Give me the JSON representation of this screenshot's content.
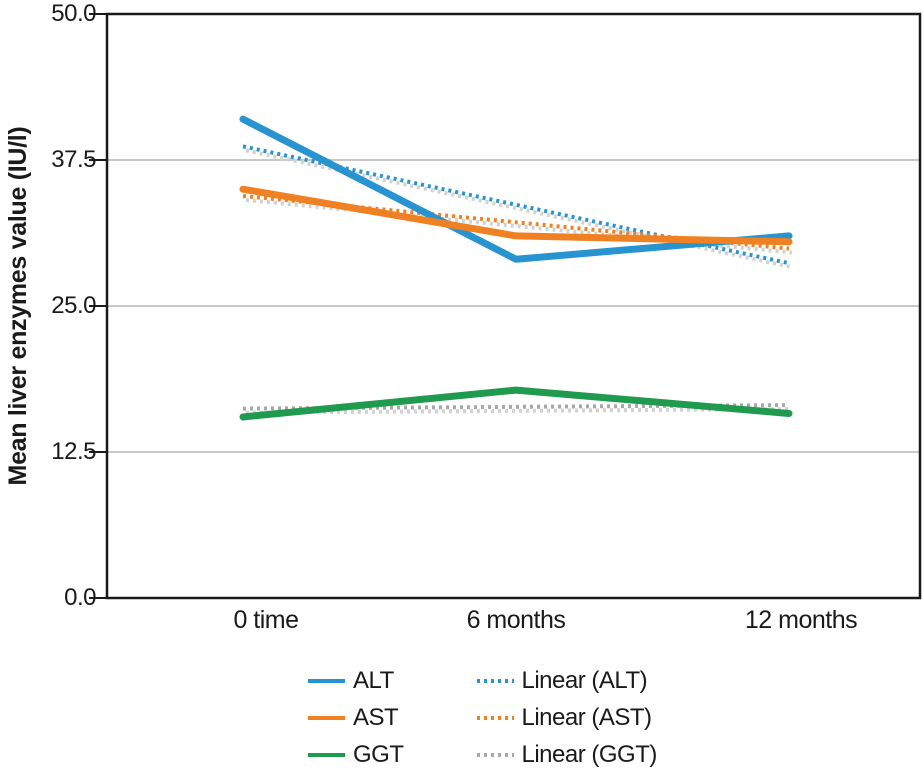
{
  "chart_data": {
    "type": "line",
    "title": "",
    "xlabel": "",
    "ylabel": "Mean liver enzymes value (IU/l)",
    "categories": [
      "0 time",
      "6 months",
      "12 months"
    ],
    "yticks": [
      "50.0",
      "37.5",
      "25.0",
      "12.5",
      "0.0"
    ],
    "ylim": [
      0,
      50
    ],
    "grid": "horizontal gridlines at 12.5, 25.0, 37.5; full black plot border",
    "legend_position": "bottom, two columns",
    "series": [
      {
        "name": "ALT",
        "style": "solid",
        "color": "#2793D1",
        "values": [
          41,
          29,
          31
        ]
      },
      {
        "name": "AST",
        "style": "solid",
        "color": "#F08122",
        "values": [
          35,
          31,
          30.5
        ]
      },
      {
        "name": "GGT",
        "style": "solid",
        "color": "#1F9A4E",
        "values": [
          15.5,
          17.8,
          15.8
        ]
      },
      {
        "name": "Linear (ALT)",
        "style": "dotted",
        "type": "trendline",
        "of": "ALT",
        "color": "#2793D1"
      },
      {
        "name": "Linear (AST)",
        "style": "dotted",
        "type": "trendline",
        "of": "AST",
        "color": "#F08122"
      },
      {
        "name": "Linear (GGT)",
        "style": "dotted",
        "type": "trendline",
        "of": "GGT",
        "color": "#A8A8A8"
      }
    ],
    "trendline_shadow_color": "#D2D2D2",
    "gridline_color": "#C9C9C9",
    "axis_color": "#1a1a1a"
  }
}
